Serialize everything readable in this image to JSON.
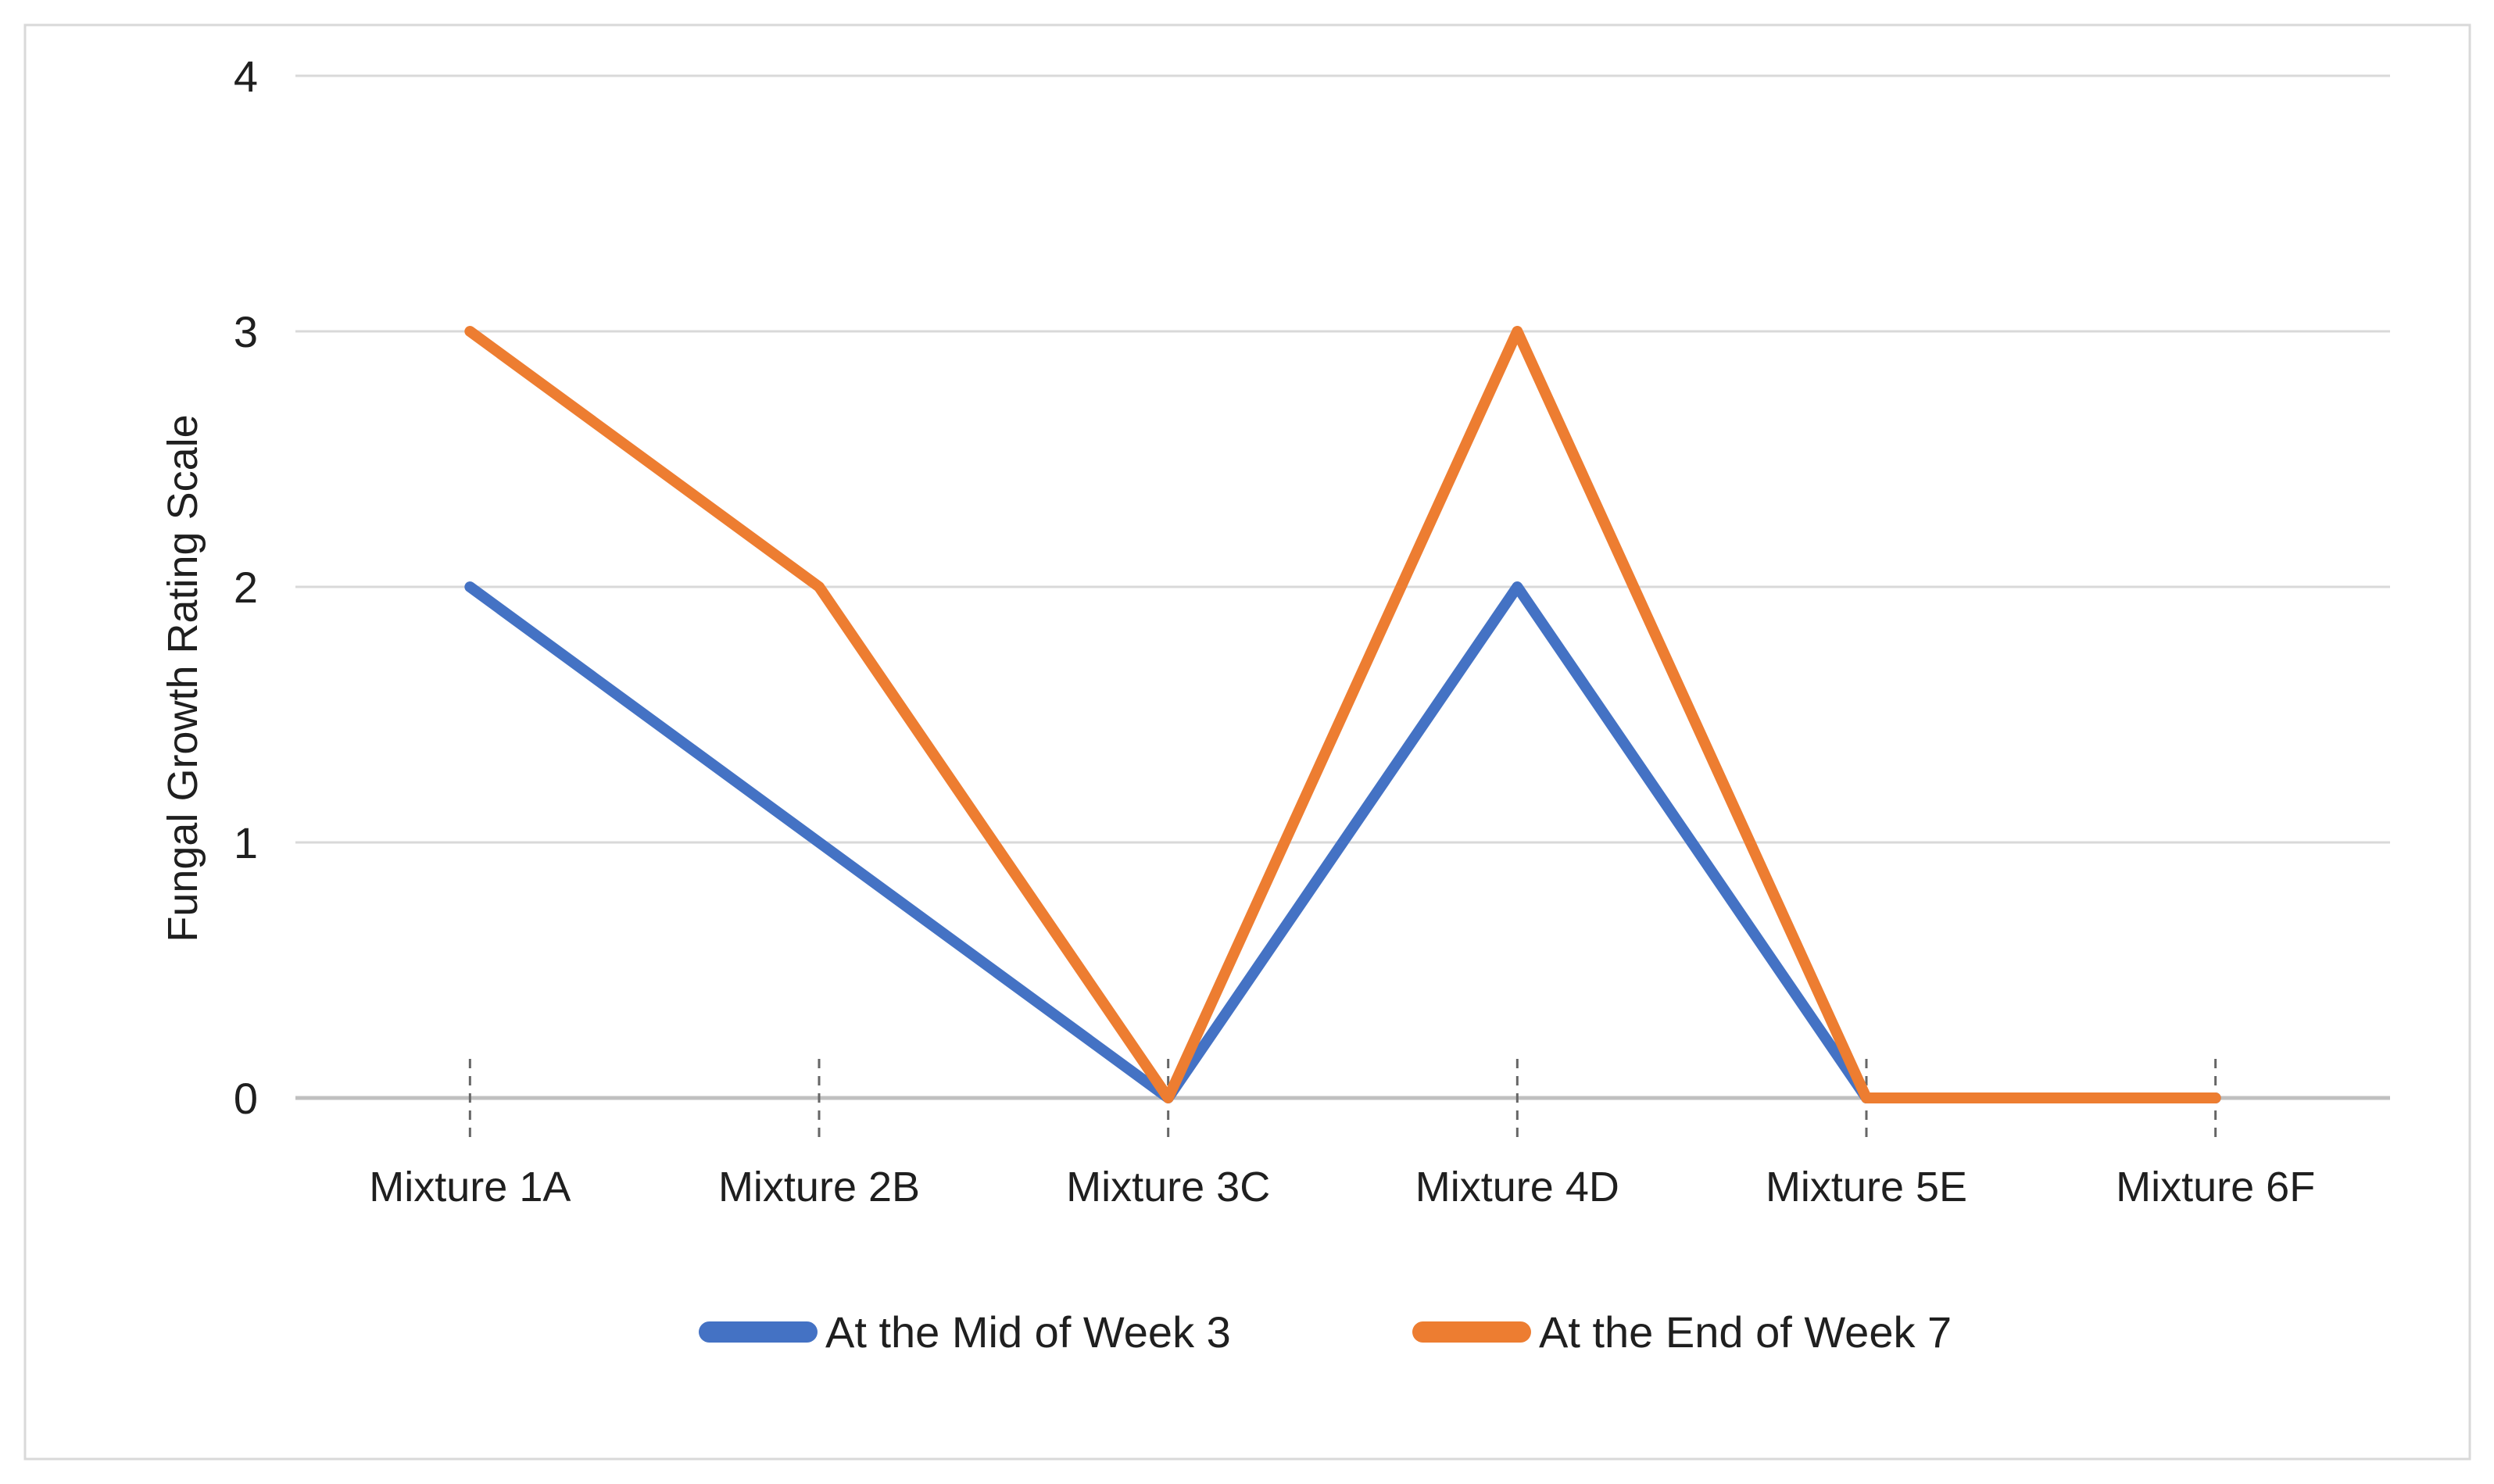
{
  "chart_data": {
    "type": "line",
    "title": "",
    "categories": [
      "Mixture 1A",
      "Mixture 2B",
      "Mixture 3C",
      "Mixture 4D",
      "Mixture 5E",
      "Mixture 6F"
    ],
    "series": [
      {
        "name": "At the Mid of Week 3",
        "color": "#4472C4",
        "values": [
          2,
          1,
          0,
          2,
          0,
          0
        ]
      },
      {
        "name": "At the End of Week 7",
        "color": "#ED7D31",
        "values": [
          3,
          2,
          0,
          3,
          0,
          0
        ]
      }
    ],
    "xlabel": "",
    "ylabel": "Fungal Growth Rating Scale",
    "y_ticks": [
      "0",
      "1",
      "2",
      "3",
      "4"
    ],
    "ylim": [
      0,
      4
    ],
    "grid": "horizontal",
    "legend_position": "bottom"
  },
  "colors": {
    "gridline": "#D9D9D9",
    "axis_line": "#C0C0C0",
    "category_tick": "#666666",
    "text": "#1F1F1F",
    "frame_border": "#D9D9D9",
    "background": "#FFFFFF"
  }
}
